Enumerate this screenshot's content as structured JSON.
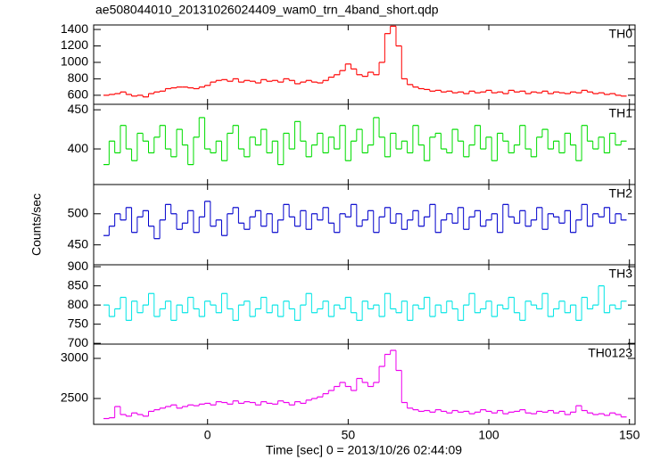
{
  "chart_data": {
    "type": "line",
    "title": "ae508044010_20131026024409_wam0_trn_4band_short.qdp",
    "xlabel": "Time [sec] 0 = 2013/10/26 02:44:09",
    "ylabel": "Counts/sec",
    "xlim": [
      -40.5,
      152
    ],
    "xticks": [
      0,
      50,
      100,
      150
    ],
    "x": [
      -36,
      -34,
      -32,
      -30,
      -28,
      -26,
      -24,
      -22,
      -20,
      -18,
      -16,
      -14,
      -12,
      -10,
      -8,
      -6,
      -4,
      -2,
      0,
      2,
      4,
      6,
      8,
      10,
      12,
      14,
      16,
      18,
      20,
      22,
      24,
      26,
      28,
      30,
      32,
      34,
      36,
      38,
      40,
      42,
      44,
      46,
      48,
      50,
      52,
      54,
      56,
      58,
      60,
      62,
      64,
      66,
      68,
      70,
      72,
      74,
      76,
      78,
      80,
      82,
      84,
      86,
      88,
      90,
      92,
      94,
      96,
      98,
      100,
      102,
      104,
      106,
      108,
      110,
      112,
      114,
      116,
      118,
      120,
      122,
      124,
      126,
      128,
      130,
      132,
      134,
      136,
      138,
      140,
      142,
      144,
      146,
      148
    ],
    "panels": [
      {
        "name": "TH0",
        "color": "#ff0000",
        "ylim": [
          490,
          1455
        ],
        "yticks": [
          600,
          800,
          1000,
          1200,
          1400
        ],
        "values": [
          600,
          610,
          620,
          640,
          610,
          590,
          600,
          580,
          620,
          640,
          650,
          680,
          690,
          700,
          700,
          690,
          680,
          700,
          720,
          760,
          780,
          790,
          770,
          800,
          760,
          780,
          770,
          750,
          790,
          770,
          780,
          760,
          800,
          780,
          740,
          760,
          780,
          760,
          750,
          780,
          820,
          850,
          900,
          980,
          920,
          850,
          830,
          880,
          850,
          1000,
          1350,
          1440,
          1200,
          800,
          730,
          700,
          680,
          670,
          650,
          660,
          640,
          650,
          630,
          640,
          620,
          650,
          630,
          640,
          660,
          630,
          640,
          620,
          660,
          640,
          650,
          620,
          640,
          630,
          650,
          620,
          640,
          630,
          620,
          640,
          630,
          660,
          640,
          620,
          630,
          610,
          620,
          600,
          590
        ]
      },
      {
        "name": "TH1",
        "color": "#00dd00",
        "ylim": [
          354.5,
          457
        ],
        "yticks": [
          400,
          450
        ],
        "values": [
          380,
          410,
          395,
          430,
          400,
          385,
          420,
          410,
          395,
          415,
          430,
          400,
          390,
          425,
          405,
          380,
          415,
          440,
          400,
          395,
          410,
          385,
          420,
          430,
          400,
          390,
          415,
          405,
          425,
          395,
          410,
          380,
          420,
          400,
          435,
          410,
          390,
          405,
          420,
          395,
          415,
          400,
          430,
          385,
          410,
          425,
          395,
          405,
          440,
          415,
          390,
          420,
          400,
          410,
          395,
          430,
          405,
          385,
          415,
          420,
          400,
          395,
          425,
          410,
          390,
          405,
          430,
          400,
          415,
          385,
          420,
          410,
          395,
          405,
          430,
          400,
          390,
          415,
          425,
          400,
          410,
          395,
          420,
          405,
          385,
          430,
          410,
          400,
          415,
          395,
          420,
          405,
          410
        ]
      },
      {
        "name": "TH2",
        "color": "#0000cc",
        "ylim": [
          418,
          547
        ],
        "yticks": [
          450,
          500
        ],
        "values": [
          465,
          480,
          500,
          490,
          510,
          470,
          495,
          505,
          480,
          460,
          490,
          515,
          500,
          475,
          485,
          505,
          470,
          495,
          520,
          480,
          490,
          465,
          500,
          510,
          485,
          475,
          495,
          505,
          480,
          500,
          470,
          490,
          515,
          495,
          480,
          505,
          475,
          500,
          490,
          510,
          485,
          470,
          500,
          495,
          515,
          480,
          490,
          505,
          470,
          495,
          510,
          485,
          500,
          475,
          490,
          505,
          480,
          495,
          515,
          470,
          490,
          500,
          485,
          510,
          475,
          495,
          505,
          480,
          490,
          500,
          470,
          515,
          495,
          485,
          505,
          480,
          490,
          510,
          475,
          500,
          495,
          485,
          505,
          470,
          490,
          515,
          480,
          500,
          495,
          510,
          485,
          500,
          490
        ]
      },
      {
        "name": "TH3",
        "color": "#00e5e5",
        "ylim": [
          698,
          905
        ],
        "yticks": [
          700,
          750,
          800,
          850,
          900
        ],
        "values": [
          800,
          770,
          790,
          820,
          760,
          810,
          780,
          800,
          830,
          770,
          790,
          810,
          760,
          800,
          780,
          820,
          790,
          770,
          810,
          800,
          780,
          830,
          790,
          760,
          800,
          810,
          770,
          790,
          820,
          780,
          800,
          770,
          810,
          790,
          760,
          800,
          830,
          780,
          790,
          810,
          770,
          800,
          790,
          820,
          780,
          760,
          810,
          790,
          800,
          770,
          830,
          790,
          780,
          810,
          760,
          800,
          790,
          820,
          770,
          800,
          780,
          810,
          790,
          760,
          800,
          830,
          780,
          790,
          810,
          770,
          800,
          790,
          820,
          780,
          760,
          810,
          800,
          790,
          830,
          770,
          790,
          810,
          780,
          800,
          760,
          820,
          790,
          800,
          850,
          780,
          800,
          790,
          810
        ]
      },
      {
        "name": "TH0123",
        "color": "#ee00ee",
        "ylim": [
          2178,
          3178
        ],
        "yticks": [
          2500,
          3000
        ],
        "values": [
          2250,
          2260,
          2400,
          2300,
          2280,
          2320,
          2300,
          2280,
          2340,
          2360,
          2380,
          2400,
          2420,
          2380,
          2400,
          2420,
          2410,
          2430,
          2440,
          2420,
          2460,
          2450,
          2430,
          2470,
          2440,
          2460,
          2450,
          2420,
          2460,
          2440,
          2430,
          2470,
          2450,
          2420,
          2460,
          2440,
          2480,
          2500,
          2520,
          2560,
          2600,
          2650,
          2700,
          2650,
          2600,
          2750,
          2700,
          2650,
          2700,
          2900,
          3050,
          3100,
          2850,
          2450,
          2380,
          2360,
          2340,
          2350,
          2330,
          2360,
          2340,
          2320,
          2350,
          2330,
          2340,
          2310,
          2330,
          2360,
          2340,
          2320,
          2350,
          2310,
          2330,
          2340,
          2360,
          2320,
          2310,
          2340,
          2330,
          2350,
          2320,
          2340,
          2300,
          2330,
          2410,
          2350,
          2320,
          2300,
          2310,
          2290,
          2320,
          2300,
          2270
        ]
      }
    ]
  }
}
